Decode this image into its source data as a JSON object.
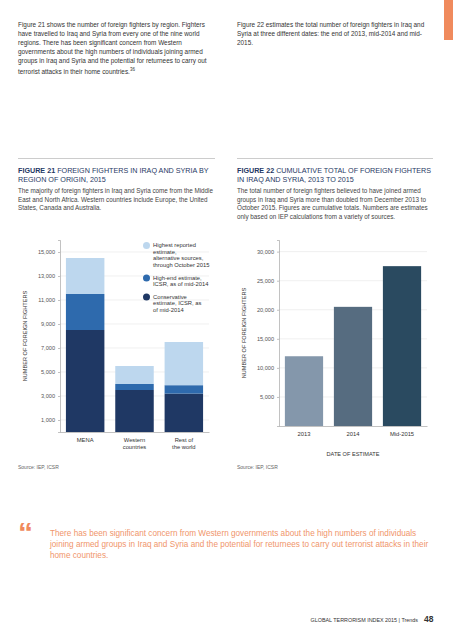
{
  "intro_left": "Figure 21 shows the number of foreign fighters by region. Fighters have travelled to Iraq and Syria from every one of the nine world regions. There has been significant concern from Western governments about the high numbers of individuals joining armed groups in Iraq and Syria and the potential for returnees to carry out terrorist attacks in their home countries.",
  "intro_left_footnote": "36",
  "intro_right": "Figure 22 estimates the total number of foreign fighters in Iraq and Syria at three different dates: the end of 2013, mid-2014 and mid-2015.",
  "chart_data": [
    {
      "type": "bar",
      "stacked": true,
      "figure_label": "FIGURE 21",
      "title": "FOREIGN FIGHTERS IN IRAQ AND SYRIA BY REGION OF ORIGIN, 2015",
      "subtitle": "The majority of foreign fighters in Iraq and Syria come from the Middle East and North Africa. Western countries include Europe, the United States, Canada and Australia.",
      "ylabel": "NUMBER OF FOREIGN FIGHTERS",
      "categories": [
        "MENA",
        "Western countries",
        "Rest of the world"
      ],
      "series": [
        {
          "name": "Conservative estimate, ICSR, as of mid-2014",
          "color": "#1f3864",
          "values": [
            8500,
            3500,
            3200
          ]
        },
        {
          "name": "High-end estimate, ICSR, as of mid-2014",
          "color": "#2e6aad",
          "values": [
            3000,
            500,
            700
          ]
        },
        {
          "name": "Highest reported estimate, alternative sources, through October 2015",
          "color": "#bdd7ee",
          "values": [
            3000,
            1500,
            3600
          ]
        }
      ],
      "ylim": [
        0,
        16000
      ],
      "yticks": [
        {
          "value": 1000,
          "label": "1,000"
        },
        {
          "value": 3000,
          "label": "3,000"
        },
        {
          "value": 5000,
          "label": "5,000"
        },
        {
          "value": 7000,
          "label": "7,000"
        },
        {
          "value": 9000,
          "label": "9,000"
        },
        {
          "value": 11000,
          "label": "11,000"
        },
        {
          "value": 13000,
          "label": "13,000"
        },
        {
          "value": 15000,
          "label": "15,000"
        }
      ],
      "grid": true,
      "legend": "top-right",
      "source": "Source: IEP, ICSR"
    },
    {
      "type": "bar",
      "figure_label": "FIGURE 22",
      "title": "CUMULATIVE TOTAL OF FOREIGN FIGHTERS IN IRAQ AND SYRIA, 2013 TO 2015",
      "subtitle": "The total number of foreign fighters believed to have joined armed groups in Iraq and Syria more than doubled from December 2013 to October 2015. Figures are cumulative totals. Numbers are estimates only based on IEP calculations from a variety of sources.",
      "ylabel": "NUMBER OF FOREIGN FIGHTERS",
      "xlabel": "DATE OF ESTIMATE",
      "categories": [
        "2013",
        "2014",
        "Mid-2015"
      ],
      "values": [
        12000,
        20500,
        27500
      ],
      "colors": [
        "#8497ab",
        "#566c80",
        "#2a4a60"
      ],
      "ylim": [
        0,
        32000
      ],
      "yticks": [
        {
          "value": 5000,
          "label": "5,000"
        },
        {
          "value": 10000,
          "label": "10,000"
        },
        {
          "value": 15000,
          "label": "15,000"
        },
        {
          "value": 20000,
          "label": "20,000"
        },
        {
          "value": 25000,
          "label": "25,000"
        },
        {
          "value": 30000,
          "label": "30,000"
        }
      ],
      "grid": true,
      "source": "Source: IEP, ICSR"
    }
  ],
  "quote_mark": "“",
  "quote": "There has been significant concern from Western governments about the high numbers of individuals joining armed groups in Iraq and Syria and the potential for returnees to carry out terrorist attacks in their home countries.",
  "footer": "GLOBAL TERRORISM INDEX 2015 | Trends",
  "page_number": "48"
}
